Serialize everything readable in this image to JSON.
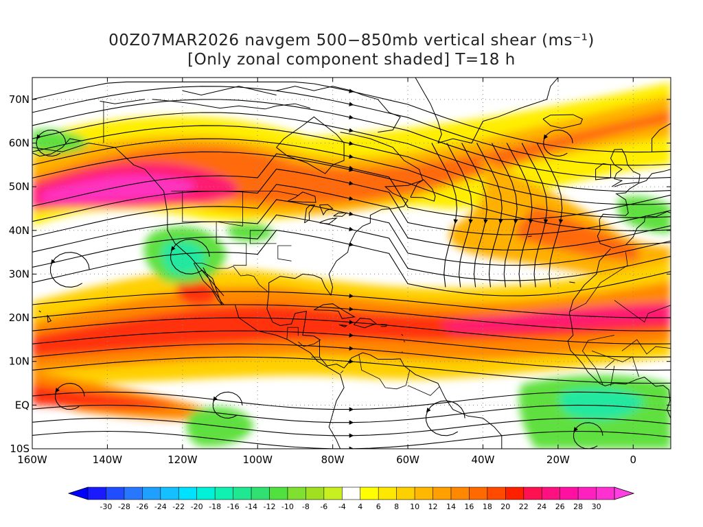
{
  "title": {
    "line1": "00Z07MAR2026 navgem 500−850mb vertical shear (ms⁻¹)",
    "line2": "[Only zonal component shaded] T=18 h"
  },
  "map": {
    "lon_range": [
      -160,
      10
    ],
    "lat_range": [
      -10,
      75
    ],
    "lat_ticks": [
      {
        "v": 70,
        "label": "70N"
      },
      {
        "v": 60,
        "label": "60N"
      },
      {
        "v": 50,
        "label": "50N"
      },
      {
        "v": 40,
        "label": "40N"
      },
      {
        "v": 30,
        "label": "30N"
      },
      {
        "v": 20,
        "label": "20N"
      },
      {
        "v": 10,
        "label": "10N"
      },
      {
        "v": 0,
        "label": "EQ"
      },
      {
        "v": -10,
        "label": "10S"
      }
    ],
    "lon_ticks": [
      {
        "v": -160,
        "label": "160W"
      },
      {
        "v": -140,
        "label": "140W"
      },
      {
        "v": -120,
        "label": "120W"
      },
      {
        "v": -100,
        "label": "100W"
      },
      {
        "v": -80,
        "label": "80W"
      },
      {
        "v": -60,
        "label": "60W"
      },
      {
        "v": -40,
        "label": "40W"
      },
      {
        "v": -20,
        "label": "20W"
      },
      {
        "v": 0,
        "label": "0"
      }
    ],
    "grid": true,
    "shaded_regions": [
      {
        "kind": "jet_north_pacific",
        "level": 26
      },
      {
        "kind": "jet_north_atlantic",
        "level": 20
      },
      {
        "kind": "subtropical_jet",
        "level": 22
      },
      {
        "kind": "tropical_easterlies",
        "level": 16
      },
      {
        "kind": "negative_shear_southwest_us",
        "level": -14
      },
      {
        "kind": "negative_shear_south_atlantic",
        "level": -12
      }
    ]
  },
  "colorbar": {
    "labels": [
      "-30",
      "-28",
      "-26",
      "-24",
      "-22",
      "-20",
      "-18",
      "-16",
      "-14",
      "-12",
      "-10",
      "-8",
      "-6",
      "-4",
      "4",
      "6",
      "8",
      "10",
      "12",
      "14",
      "16",
      "18",
      "20",
      "22",
      "24",
      "26",
      "28",
      "30"
    ],
    "colors": [
      "#1a1aff",
      "#1f4dff",
      "#2878ff",
      "#1ea0ff",
      "#14c0ff",
      "#00e0ff",
      "#00f0d8",
      "#10f0b0",
      "#20e890",
      "#30e070",
      "#50e040",
      "#80e030",
      "#a0e020",
      "#c8f020",
      "#ffffff",
      "#ffff00",
      "#ffe800",
      "#ffd000",
      "#ffb800",
      "#ffa000",
      "#ff8800",
      "#ff6a00",
      "#ff4a00",
      "#ff2000",
      "#ff1050",
      "#ff1080",
      "#ff10a0",
      "#ff20c0",
      "#ff30d0"
    ],
    "low_arrow_color": "#0000ff",
    "high_arrow_color": "#ff40e0"
  }
}
